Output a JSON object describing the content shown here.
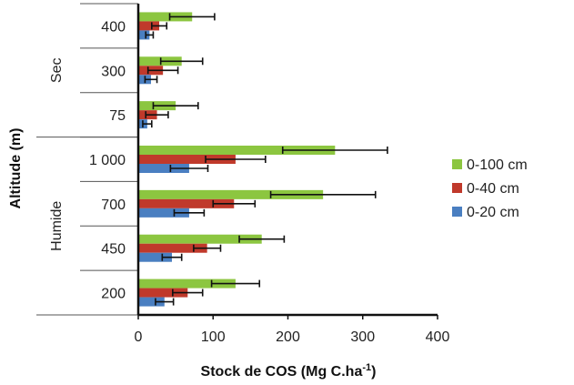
{
  "chart_data": {
    "type": "bar",
    "orientation": "horizontal",
    "xlabel": "Stock de COS (Mg C.ha",
    "xlabel_sup": "-1",
    "xlabel_close": ")",
    "ylabel": "Altitude (m)",
    "xlim": [
      0,
      400
    ],
    "xticks": [
      "0",
      "100",
      "200",
      "300",
      "400"
    ],
    "groups": [
      {
        "name": "Sec",
        "categories": [
          "400",
          "300",
          "75"
        ]
      },
      {
        "name": "Humide",
        "categories": [
          "1 000",
          "700",
          "450",
          "200"
        ]
      }
    ],
    "categories": [
      "400",
      "300",
      "75",
      "1 000",
      "700",
      "450",
      "200"
    ],
    "legend_position": "right",
    "series": [
      {
        "name": "0-100 cm",
        "color": "#8cc640",
        "values": [
          72,
          58,
          50,
          263,
          247,
          165,
          130
        ],
        "errors": [
          30,
          28,
          30,
          70,
          70,
          30,
          32
        ]
      },
      {
        "name": "0-40 cm",
        "color": "#c0392b",
        "values": [
          28,
          33,
          25,
          130,
          128,
          92,
          66
        ],
        "errors": [
          10,
          20,
          15,
          40,
          28,
          18,
          20
        ]
      },
      {
        "name": "0-20 cm",
        "color": "#4a7fc1",
        "values": [
          15,
          17,
          12,
          68,
          68,
          45,
          35
        ],
        "errors": [
          5,
          8,
          6,
          25,
          20,
          13,
          12
        ]
      }
    ]
  }
}
